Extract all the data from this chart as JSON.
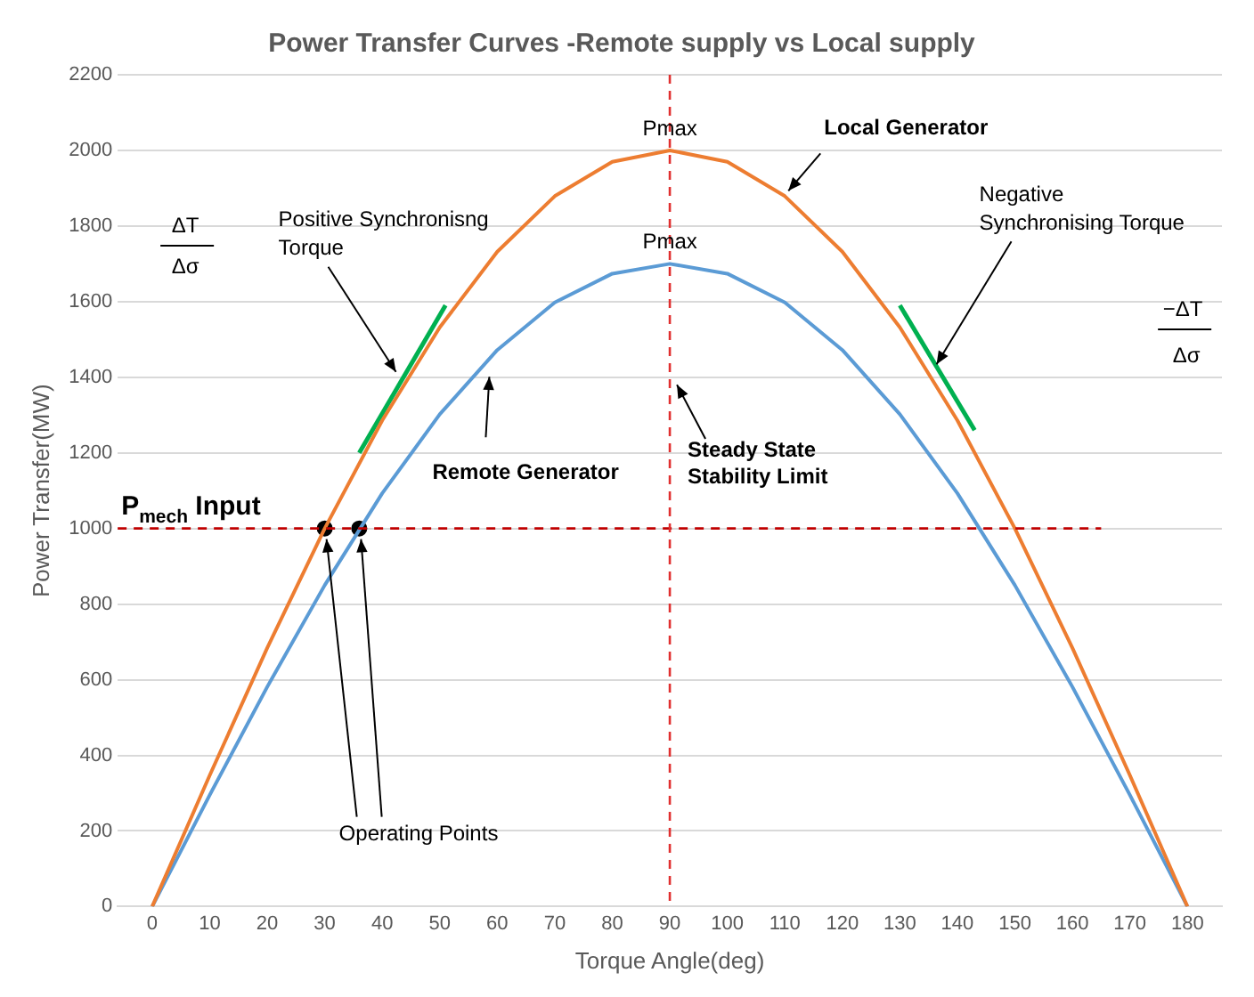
{
  "chart_data": {
    "type": "line",
    "title": "Power Transfer Curves -Remote supply vs Local supply",
    "xlabel": "Torque Angle(deg)",
    "ylabel": "Power Transfer(MW)",
    "x": [
      0,
      10,
      20,
      30,
      40,
      50,
      60,
      70,
      80,
      90,
      100,
      110,
      120,
      130,
      140,
      150,
      160,
      170,
      180
    ],
    "series": [
      {
        "type": "line",
        "color": "#ed7d31",
        "values": [
          0,
          347,
          684,
          1000,
          1286,
          1532,
          1732,
          1879,
          1970,
          2000,
          1970,
          1879,
          1732,
          1532,
          1286,
          1000,
          684,
          347,
          0
        ]
      },
      {
        "type": "line",
        "color": "#5b9bd5",
        "values": [
          0,
          295,
          581,
          850,
          1093,
          1302,
          1472,
          1598,
          1674,
          1700,
          1674,
          1598,
          1472,
          1302,
          1093,
          850,
          581,
          295,
          0
        ]
      },
      {
        "type": "line",
        "color": "#00b050",
        "x": [
          36,
          51
        ],
        "values": [
          1200,
          1590
        ]
      },
      {
        "type": "line",
        "color": "#00b050",
        "x": [
          130,
          143
        ],
        "values": [
          1590,
          1260
        ]
      },
      {
        "type": "scatter",
        "color": "#000000",
        "marker": "circle",
        "x": [
          30,
          36
        ],
        "values": [
          1000,
          1000
        ]
      }
    ],
    "xlim": [
      -6,
      186
    ],
    "xticks": [
      0,
      10,
      20,
      30,
      40,
      50,
      60,
      70,
      80,
      90,
      100,
      110,
      120,
      130,
      140,
      150,
      160,
      170,
      180
    ],
    "ylim": [
      0,
      2200
    ],
    "yticks": [
      0,
      200,
      400,
      600,
      800,
      1000,
      1200,
      1400,
      1600,
      1800,
      2000,
      2200
    ],
    "grid": "y",
    "legend": false,
    "marker": "none",
    "line_style": "solid",
    "ref_lines": [
      {
        "axis": "y",
        "value": 1000,
        "label": "P$_{mech}$ Input",
        "color": "#c00000",
        "line_style": "dashed"
      },
      {
        "axis": "x",
        "value": 90,
        "label": "Steady State Stability Limit",
        "color": "#e03030",
        "line_style": "dashed"
      }
    ],
    "annotations": [
      {
        "text": "Pmax",
        "x": 90,
        "y": 2000
      },
      {
        "text": "Pmax",
        "x": 90,
        "y": 1700
      },
      {
        "text": "Local Generator",
        "x": 110,
        "y": 1879
      },
      {
        "text": "Remote Generator",
        "x": 58,
        "y": 1420
      },
      {
        "text": "Operating Points",
        "x": 30,
        "y": 1000
      },
      {
        "text": "Positive Synchronisng Torque",
        "x": 43,
        "y": 1400
      },
      {
        "text": "Negative Synchronising Torque",
        "x": 137,
        "y": 1420
      },
      "ΔT",
      "Δσ",
      "−ΔT",
      "Δσ"
    ]
  }
}
